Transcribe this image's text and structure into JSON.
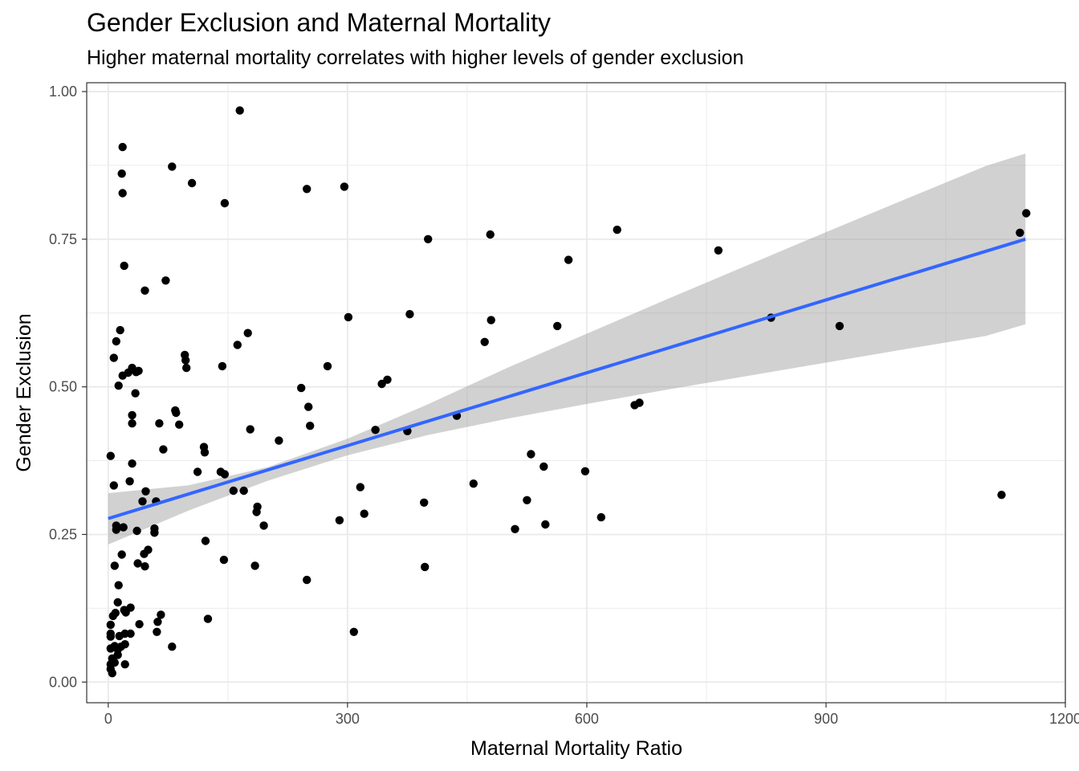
{
  "chart_data": {
    "type": "scatter",
    "title": "Gender Exclusion and Maternal Mortality",
    "subtitle": "Higher maternal mortality correlates with higher levels of gender exclusion",
    "xlabel": "Maternal Mortality Ratio",
    "ylabel": "Gender Exclusion",
    "xlim": [
      -27,
      1200
    ],
    "ylim": [
      -0.035,
      1.015
    ],
    "x_ticks": [
      0,
      300,
      600,
      900,
      1200
    ],
    "y_ticks": [
      0.0,
      0.25,
      0.5,
      0.75,
      1.0
    ],
    "x_tick_labels": [
      "0",
      "300",
      "600",
      "900",
      "1200"
    ],
    "y_tick_labels": [
      "0.00",
      "0.25",
      "0.50",
      "0.75",
      "1.00"
    ],
    "grid": true,
    "legend": "none",
    "colors": {
      "points": "#000000",
      "trend_line": "#3366FF",
      "confidence_band": "#999999",
      "panel_border": "#333333",
      "grid": "#ebebeb"
    },
    "trend_line": {
      "x": [
        0,
        1150
      ],
      "y": [
        0.277,
        0.75
      ]
    },
    "confidence_band": {
      "x": [
        0,
        100,
        200,
        300,
        400,
        500,
        600,
        700,
        800,
        900,
        1000,
        1100,
        1150
      ],
      "lower": [
        0.233,
        0.29,
        0.341,
        0.384,
        0.418,
        0.446,
        0.471,
        0.495,
        0.518,
        0.541,
        0.564,
        0.586,
        0.606
      ],
      "upper": [
        0.32,
        0.333,
        0.364,
        0.412,
        0.47,
        0.532,
        0.59,
        0.648,
        0.705,
        0.762,
        0.818,
        0.874,
        0.895
      ]
    },
    "points": [
      [
        3,
        0.383
      ],
      [
        3,
        0.097
      ],
      [
        3,
        0.082
      ],
      [
        3,
        0.077
      ],
      [
        3,
        0.057
      ],
      [
        3,
        0.03
      ],
      [
        3,
        0.022
      ],
      [
        5,
        0.015
      ],
      [
        5,
        0.04
      ],
      [
        6,
        0.112
      ],
      [
        7,
        0.333
      ],
      [
        7,
        0.549
      ],
      [
        8,
        0.197
      ],
      [
        8,
        0.061
      ],
      [
        8,
        0.033
      ],
      [
        9,
        0.117
      ],
      [
        10,
        0.577
      ],
      [
        10,
        0.265
      ],
      [
        10,
        0.258
      ],
      [
        12,
        0.135
      ],
      [
        12,
        0.055
      ],
      [
        12,
        0.046
      ],
      [
        13,
        0.164
      ],
      [
        13,
        0.502
      ],
      [
        14,
        0.078
      ],
      [
        15,
        0.596
      ],
      [
        16,
        0.06
      ],
      [
        17,
        0.216
      ],
      [
        17,
        0.861
      ],
      [
        18,
        0.906
      ],
      [
        18,
        0.828
      ],
      [
        18,
        0.519
      ],
      [
        19,
        0.262
      ],
      [
        20,
        0.705
      ],
      [
        20,
        0.122
      ],
      [
        21,
        0.082
      ],
      [
        21,
        0.064
      ],
      [
        21,
        0.03
      ],
      [
        22,
        0.118
      ],
      [
        25,
        0.524
      ],
      [
        27,
        0.34
      ],
      [
        28,
        0.126
      ],
      [
        28,
        0.082
      ],
      [
        30,
        0.532
      ],
      [
        30,
        0.452
      ],
      [
        30,
        0.37
      ],
      [
        30,
        0.438
      ],
      [
        34,
        0.489
      ],
      [
        35,
        0.525
      ],
      [
        36,
        0.256
      ],
      [
        37,
        0.201
      ],
      [
        38,
        0.527
      ],
      [
        39,
        0.098
      ],
      [
        43,
        0.306
      ],
      [
        45,
        0.217
      ],
      [
        46,
        0.196
      ],
      [
        46,
        0.663
      ],
      [
        47,
        0.323
      ],
      [
        50,
        0.224
      ],
      [
        58,
        0.253
      ],
      [
        58,
        0.26
      ],
      [
        60,
        0.306
      ],
      [
        61,
        0.085
      ],
      [
        62,
        0.102
      ],
      [
        64,
        0.438
      ],
      [
        66,
        0.114
      ],
      [
        69,
        0.394
      ],
      [
        72,
        0.68
      ],
      [
        80,
        0.06
      ],
      [
        80,
        0.873
      ],
      [
        84,
        0.46
      ],
      [
        85,
        0.456
      ],
      [
        89,
        0.436
      ],
      [
        96,
        0.554
      ],
      [
        97,
        0.545
      ],
      [
        98,
        0.532
      ],
      [
        105,
        0.845
      ],
      [
        112,
        0.356
      ],
      [
        120,
        0.398
      ],
      [
        121,
        0.389
      ],
      [
        122,
        0.239
      ],
      [
        125,
        0.107
      ],
      [
        141,
        0.356
      ],
      [
        143,
        0.535
      ],
      [
        145,
        0.207
      ],
      [
        146,
        0.811
      ],
      [
        146,
        0.352
      ],
      [
        157,
        0.324
      ],
      [
        162,
        0.571
      ],
      [
        165,
        0.968
      ],
      [
        170,
        0.324
      ],
      [
        175,
        0.591
      ],
      [
        178,
        0.428
      ],
      [
        184,
        0.197
      ],
      [
        186,
        0.288
      ],
      [
        187,
        0.297
      ],
      [
        195,
        0.265
      ],
      [
        214,
        0.409
      ],
      [
        242,
        0.498
      ],
      [
        249,
        0.173
      ],
      [
        249,
        0.835
      ],
      [
        251,
        0.466
      ],
      [
        253,
        0.434
      ],
      [
        275,
        0.535
      ],
      [
        290,
        0.274
      ],
      [
        296,
        0.839
      ],
      [
        301,
        0.618
      ],
      [
        308,
        0.085
      ],
      [
        316,
        0.33
      ],
      [
        321,
        0.285
      ],
      [
        335,
        0.427
      ],
      [
        343,
        0.505
      ],
      [
        350,
        0.512
      ],
      [
        375,
        0.425
      ],
      [
        378,
        0.623
      ],
      [
        396,
        0.304
      ],
      [
        397,
        0.195
      ],
      [
        401,
        0.75
      ],
      [
        437,
        0.451
      ],
      [
        458,
        0.336
      ],
      [
        472,
        0.576
      ],
      [
        479,
        0.758
      ],
      [
        480,
        0.613
      ],
      [
        510,
        0.259
      ],
      [
        525,
        0.308
      ],
      [
        530,
        0.386
      ],
      [
        546,
        0.365
      ],
      [
        548,
        0.267
      ],
      [
        563,
        0.603
      ],
      [
        577,
        0.715
      ],
      [
        598,
        0.357
      ],
      [
        618,
        0.279
      ],
      [
        660,
        0.469
      ],
      [
        666,
        0.473
      ],
      [
        638,
        0.766
      ],
      [
        765,
        0.731
      ],
      [
        831,
        0.617
      ],
      [
        917,
        0.603
      ],
      [
        1120,
        0.317
      ],
      [
        1143,
        0.761
      ],
      [
        1151,
        0.794
      ]
    ]
  }
}
